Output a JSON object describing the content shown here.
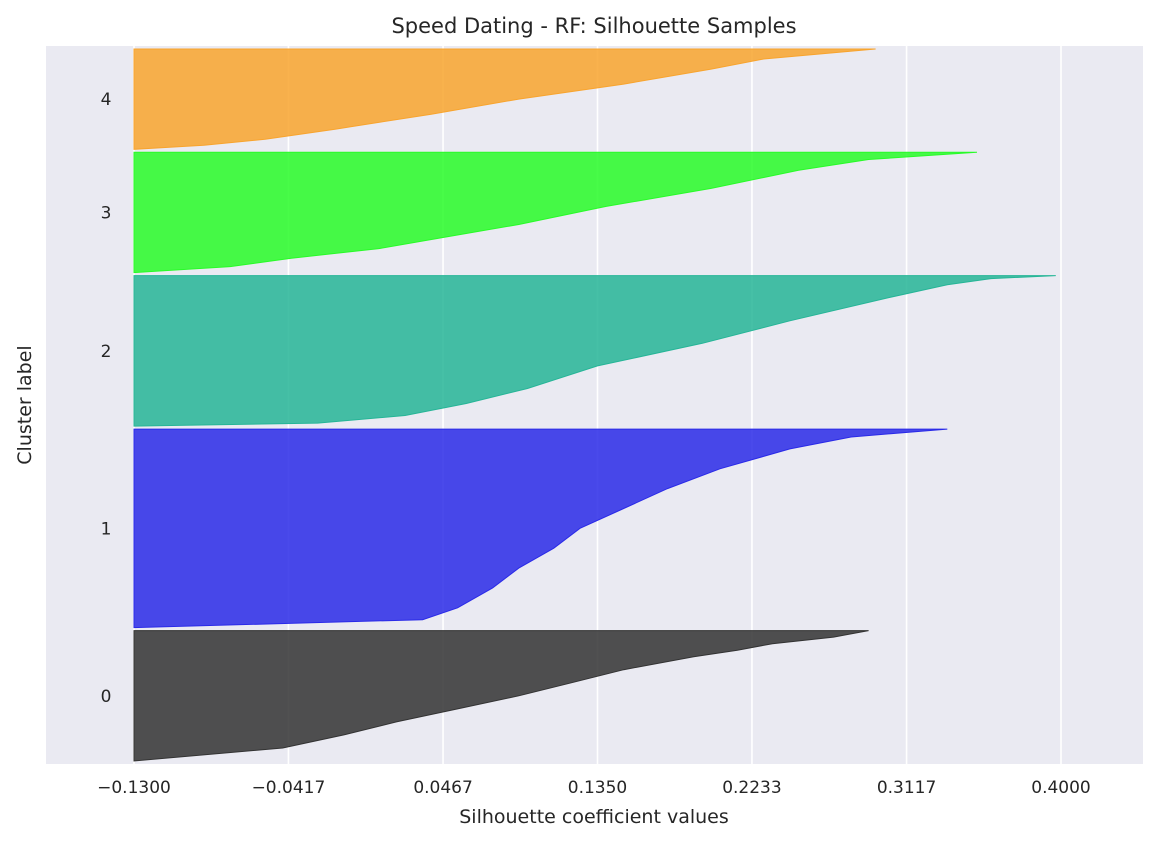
{
  "chart_data": {
    "type": "area",
    "title": "Speed Dating - RF: Silhouette Samples",
    "xlabel": "Silhouette coefficient values",
    "ylabel": "Cluster label",
    "xlim": [
      -0.135,
      0.405
    ],
    "x_ticks": [
      "−0.1300",
      "−0.0417",
      "0.0467",
      "0.1350",
      "0.2233",
      "0.3117",
      "0.4000"
    ],
    "x_tick_values": [
      -0.13,
      -0.0417,
      0.0467,
      0.135,
      0.2233,
      0.3117,
      0.4
    ],
    "grid": true,
    "clusters": [
      {
        "label": "0",
        "color": "#333333",
        "size": 130,
        "profile": [
          [
            0,
            0.29
          ],
          [
            0.05,
            0.27
          ],
          [
            0.1,
            0.235
          ],
          [
            0.15,
            0.215
          ],
          [
            0.2,
            0.19
          ],
          [
            0.3,
            0.15
          ],
          [
            0.4,
            0.12
          ],
          [
            0.5,
            0.09
          ],
          [
            0.6,
            0.055
          ],
          [
            0.7,
            0.02
          ],
          [
            0.8,
            -0.01
          ],
          [
            0.9,
            -0.045
          ],
          [
            1.0,
            -0.13
          ]
        ]
      },
      {
        "label": "1",
        "color": "#2a2ae8",
        "size": 198,
        "profile": [
          [
            0,
            0.335
          ],
          [
            0.04,
            0.28
          ],
          [
            0.1,
            0.245
          ],
          [
            0.2,
            0.205
          ],
          [
            0.3,
            0.175
          ],
          [
            0.4,
            0.15
          ],
          [
            0.5,
            0.125
          ],
          [
            0.6,
            0.11
          ],
          [
            0.7,
            0.09
          ],
          [
            0.8,
            0.075
          ],
          [
            0.9,
            0.055
          ],
          [
            0.96,
            0.035
          ],
          [
            1.0,
            -0.13
          ]
        ]
      },
      {
        "label": "2",
        "color": "#26b597",
        "size": 150,
        "profile": [
          [
            0,
            0.397
          ],
          [
            0.02,
            0.36
          ],
          [
            0.06,
            0.335
          ],
          [
            0.15,
            0.3
          ],
          [
            0.3,
            0.245
          ],
          [
            0.45,
            0.195
          ],
          [
            0.6,
            0.135
          ],
          [
            0.75,
            0.095
          ],
          [
            0.85,
            0.06
          ],
          [
            0.93,
            0.025
          ],
          [
            0.98,
            -0.025
          ],
          [
            1.0,
            -0.13
          ]
        ]
      },
      {
        "label": "3",
        "color": "#28fb28",
        "size": 120,
        "profile": [
          [
            0,
            0.352
          ],
          [
            0.06,
            0.29
          ],
          [
            0.15,
            0.25
          ],
          [
            0.3,
            0.2
          ],
          [
            0.45,
            0.14
          ],
          [
            0.6,
            0.09
          ],
          [
            0.7,
            0.05
          ],
          [
            0.8,
            0.01
          ],
          [
            0.88,
            -0.04
          ],
          [
            0.95,
            -0.075
          ],
          [
            1.0,
            -0.13
          ]
        ]
      },
      {
        "label": "4",
        "color": "#f8a42e",
        "size": 100,
        "profile": [
          [
            0,
            0.294
          ],
          [
            0.1,
            0.23
          ],
          [
            0.2,
            0.2
          ],
          [
            0.35,
            0.15
          ],
          [
            0.5,
            0.09
          ],
          [
            0.65,
            0.04
          ],
          [
            0.8,
            -0.015
          ],
          [
            0.9,
            -0.055
          ],
          [
            0.96,
            -0.09
          ],
          [
            1.0,
            -0.13
          ]
        ]
      }
    ]
  }
}
